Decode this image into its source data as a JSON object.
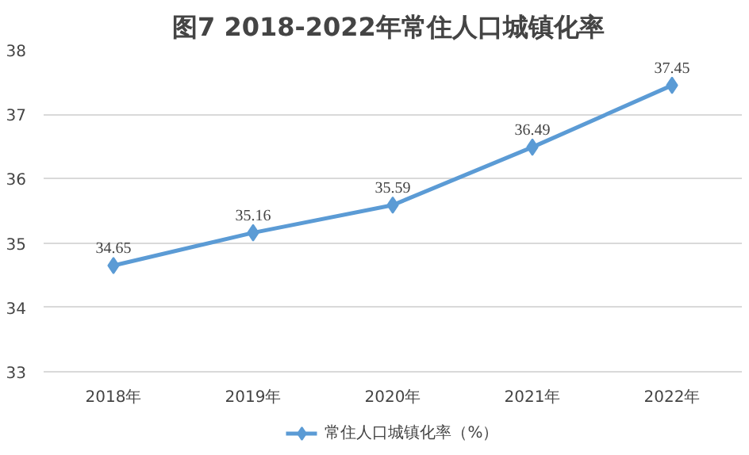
{
  "chart_data": {
    "type": "line",
    "title": "图7  2018-2022年常住人口城镇化率",
    "categories": [
      "2018年",
      "2019年",
      "2020年",
      "2021年",
      "2022年"
    ],
    "series": [
      {
        "name": "常住人口城镇化率（%）",
        "color": "#5b9bd5",
        "values": [
          34.65,
          35.16,
          35.59,
          36.49,
          37.45
        ]
      }
    ],
    "ylim": [
      33,
      38
    ],
    "yticks": [
      33,
      34,
      35,
      36,
      37,
      38
    ],
    "grid": "y",
    "legend": "bottom",
    "marker": "diamond",
    "line_style": "solid",
    "data_labels": true
  }
}
